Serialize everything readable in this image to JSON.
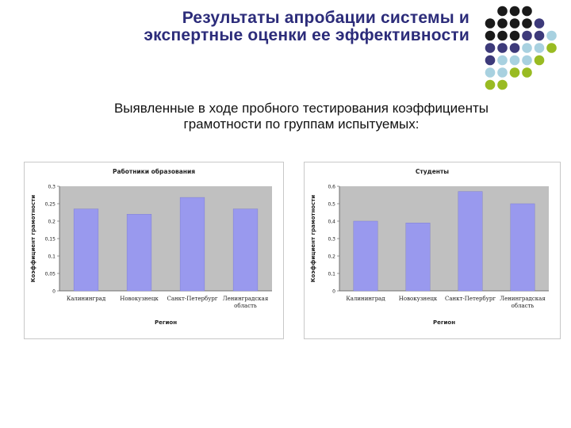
{
  "slide": {
    "title_line1": "Результаты апробации системы и",
    "title_line2": "экспертные оценки ее эффективности",
    "subtitle_line1": "Выявленные в ходе пробного тестирования коэффициенты",
    "subtitle_line2": "грамотности по группам испытуемых:",
    "decor_colors": [
      "#1a1a1a",
      "#3d3a7a",
      "#a8d1e0",
      "#99bb22"
    ]
  },
  "chart_data": [
    {
      "type": "bar",
      "title": "Работники образования",
      "xlabel": "Регион",
      "ylabel": "Коэффициент грамотности",
      "categories": [
        [
          "Калининград"
        ],
        [
          "Новокузнецк"
        ],
        [
          "Санкт-Петербург"
        ],
        [
          "Ленинградская",
          "область"
        ]
      ],
      "values": [
        0.235,
        0.22,
        0.268,
        0.235
      ],
      "ylim": [
        0,
        0.3
      ],
      "yticks": [
        "0,3",
        "0,25",
        "0,2",
        "0,15",
        "0,1",
        "0,05",
        "0"
      ],
      "bar_color": "#9999ee",
      "plot_bg": "#c0c0c0",
      "grid": false
    },
    {
      "type": "bar",
      "title": "Студенты",
      "xlabel": "Регион",
      "ylabel": "Коэффициент грамотности",
      "categories": [
        [
          "Калининград"
        ],
        [
          "Новокузнецк"
        ],
        [
          "Санкт-Петербург"
        ],
        [
          "Ленинградская",
          "область"
        ]
      ],
      "values": [
        0.4,
        0.39,
        0.57,
        0.5
      ],
      "ylim": [
        0,
        0.6
      ],
      "yticks": [
        "0,6",
        "0,5",
        "0,4",
        "0,3",
        "0,2",
        "0,1",
        "0"
      ],
      "bar_color": "#9999ee",
      "plot_bg": "#c0c0c0",
      "grid": false
    }
  ]
}
